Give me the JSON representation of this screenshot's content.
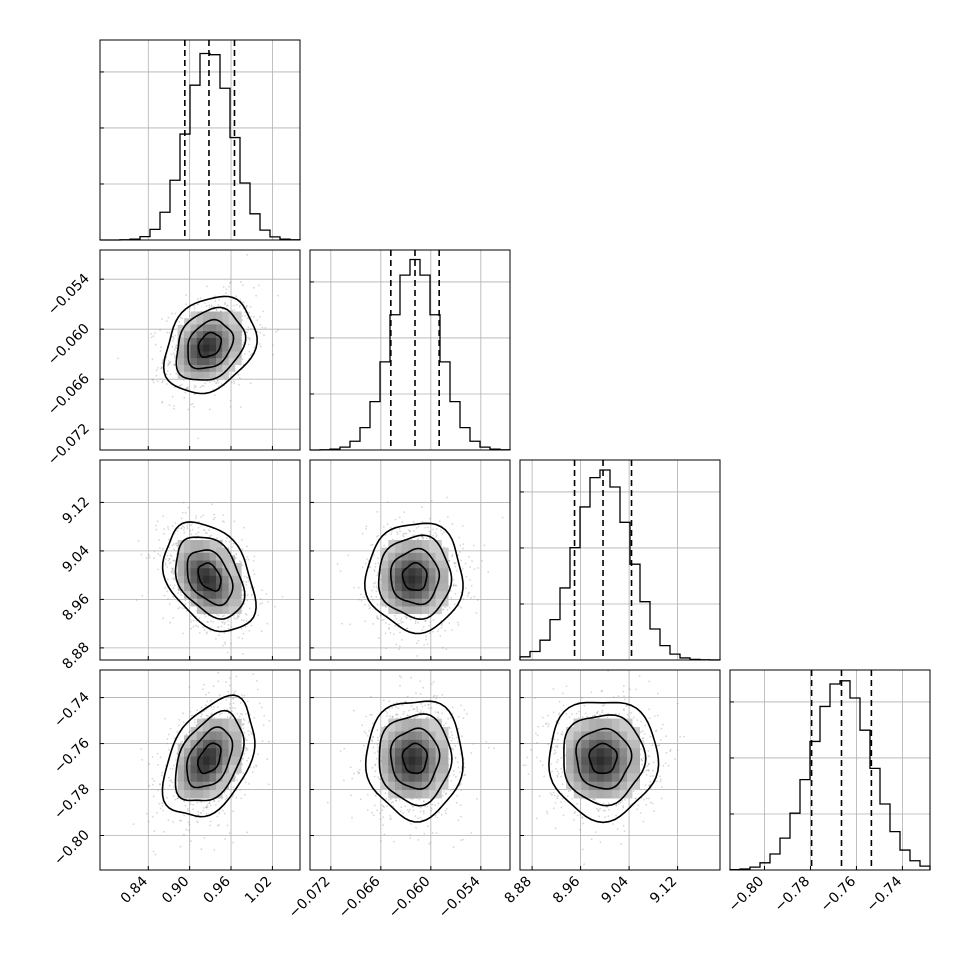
{
  "chart_data": {
    "type": "corner",
    "grid": true,
    "parameters": [
      {
        "index": 0,
        "range": [
          0.77,
          1.06
        ],
        "ticks": [
          0.84,
          0.9,
          0.96,
          1.02
        ],
        "tick_labels": [
          "0.84",
          "0.90",
          "0.96",
          "1.02"
        ],
        "quantiles": [
          0.893,
          0.928,
          0.965
        ],
        "mean": 0.929,
        "std": 0.033,
        "histogram_density_ticks": [
          1,
          2,
          3
        ]
      },
      {
        "index": 1,
        "range": [
          -0.0745,
          -0.0505
        ],
        "ticks": [
          -0.072,
          -0.066,
          -0.06,
          -0.054
        ],
        "tick_labels": [
          "−0.072",
          "−0.066",
          "−0.060",
          "−0.054"
        ],
        "quantiles": [
          -0.0648,
          -0.0619,
          -0.059
        ],
        "mean": -0.0619,
        "std": 0.0029,
        "histogram_density_ticks": [
          1,
          2,
          3
        ]
      },
      {
        "index": 2,
        "range": [
          8.86,
          9.19
        ],
        "ticks": [
          8.88,
          8.96,
          9.04,
          9.12
        ],
        "tick_labels": [
          "8.88",
          "8.96",
          "9.04",
          "9.12"
        ],
        "quantiles": [
          8.95,
          8.997,
          9.044
        ],
        "mean": 8.997,
        "std": 0.045,
        "histogram_density_ticks": [
          1,
          2,
          3
        ]
      },
      {
        "index": 3,
        "range": [
          -0.815,
          -0.728
        ],
        "ticks": [
          -0.8,
          -0.78,
          -0.76,
          -0.74
        ],
        "tick_labels": [
          "−0.80",
          "−0.78",
          "−0.76",
          "−0.74"
        ],
        "quantiles": [
          -0.7795,
          -0.7665,
          -0.7535
        ],
        "mean": -0.7665,
        "std": 0.013,
        "histogram_density_ticks": [
          1,
          2,
          3
        ]
      }
    ],
    "correlations": [
      {
        "pair": [
          0,
          1
        ],
        "rho": 0.25
      },
      {
        "pair": [
          0,
          2
        ],
        "rho": -0.35
      },
      {
        "pair": [
          1,
          2
        ],
        "rho": 0.0
      },
      {
        "pair": [
          0,
          3
        ],
        "rho": 0.4
      },
      {
        "pair": [
          1,
          3
        ],
        "rho": 0.0
      },
      {
        "pair": [
          2,
          3
        ],
        "rho": 0.0
      }
    ],
    "contour_levels_sigma": [
      0.5,
      1.0,
      1.5,
      2.0
    ],
    "histogram_bins": 20
  }
}
